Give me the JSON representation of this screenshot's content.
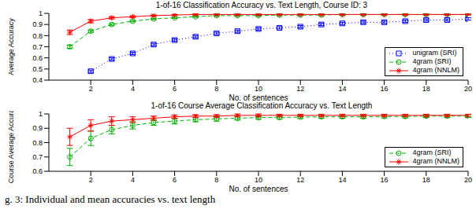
{
  "chart_data": [
    {
      "type": "line",
      "title": "1-of-16 Classification Accuracy vs. Text Length, Course ID: 3",
      "x_label": "No. of sentences",
      "y_label": "Average Accuracy",
      "x": [
        1,
        2,
        3,
        4,
        5,
        6,
        7,
        8,
        9,
        10,
        11,
        12,
        13,
        14,
        15,
        16,
        17,
        18,
        19,
        20
      ],
      "xlim": [
        0,
        20
      ],
      "xticks": [
        2,
        4,
        6,
        8,
        10,
        12,
        14,
        16,
        18,
        20
      ],
      "ylim": [
        0.4,
        1
      ],
      "yticks": [
        0.4,
        0.5,
        0.6,
        0.7,
        0.8,
        0.9,
        1
      ],
      "grid": false,
      "legend": "lower right",
      "series": [
        {
          "name": "unigram (SRI)",
          "color": "#0000ff",
          "marker": "square",
          "line_style": "dotted",
          "values": [
            null,
            0.48,
            0.59,
            0.64,
            0.72,
            0.76,
            0.79,
            0.82,
            0.84,
            0.86,
            0.87,
            0.88,
            0.9,
            0.91,
            0.92,
            0.92,
            0.93,
            0.94,
            0.94,
            0.95
          ],
          "error": [
            null,
            0.01,
            0.01,
            0.01,
            0.01,
            0.01,
            0.01,
            0.01,
            0.01,
            0.01,
            0.01,
            0.01,
            0.01,
            0.01,
            0.01,
            0.01,
            0.01,
            0.01,
            0.01,
            0.01
          ]
        },
        {
          "name": "4gram (SRI)",
          "color": "#00b000",
          "marker": "circle",
          "line_style": "dashed",
          "values": [
            0.7,
            0.84,
            0.9,
            0.93,
            0.95,
            0.96,
            0.97,
            0.98,
            0.98,
            0.98,
            0.985,
            0.985,
            0.985,
            0.99,
            0.99,
            0.99,
            0.99,
            0.99,
            0.99,
            0.99
          ],
          "error": [
            0.015,
            0.01,
            0.008,
            0.006,
            0.005,
            0.005,
            0.005,
            0.005,
            0.005,
            0.005,
            0.005,
            0.005,
            0.005,
            0.005,
            0.005,
            0.005,
            0.005,
            0.005,
            0.005,
            0.005
          ]
        },
        {
          "name": "4gram (NNLM)",
          "color": "#ff0000",
          "marker": "star",
          "line_style": "solid",
          "values": [
            0.83,
            0.93,
            0.96,
            0.97,
            0.98,
            0.985,
            0.99,
            0.99,
            0.99,
            0.99,
            0.99,
            0.99,
            0.99,
            0.99,
            0.99,
            0.99,
            0.99,
            0.99,
            0.99,
            0.99
          ],
          "error": [
            0.02,
            0.015,
            0.01,
            0.008,
            0.005,
            0.005,
            0.005,
            0.005,
            0.005,
            0.005,
            0.005,
            0.005,
            0.005,
            0.005,
            0.005,
            0.005,
            0.005,
            0.005,
            0.005,
            0.005
          ]
        }
      ]
    },
    {
      "type": "line",
      "title": "1-of-16 Course Average Classification Accuracy vs. Text Length",
      "x_label": "No. of sentences",
      "y_label": "Course Average Accuracy",
      "x": [
        1,
        2,
        3,
        4,
        5,
        6,
        7,
        8,
        9,
        10,
        11,
        12,
        13,
        14,
        15,
        16,
        17,
        18,
        19,
        20
      ],
      "xlim": [
        0,
        20
      ],
      "xticks": [
        2,
        4,
        6,
        8,
        10,
        12,
        14,
        16,
        18,
        20
      ],
      "ylim": [
        0.6,
        1
      ],
      "yticks": [
        0.6,
        0.7,
        0.8,
        0.9,
        1
      ],
      "grid": false,
      "legend": "lower right",
      "series": [
        {
          "name": "4gram (SRI)",
          "color": "#00b000",
          "marker": "circle",
          "line_style": "dashed",
          "values": [
            0.7,
            0.83,
            0.89,
            0.92,
            0.94,
            0.95,
            0.96,
            0.965,
            0.97,
            0.975,
            0.975,
            0.978,
            0.98,
            0.98,
            0.98,
            0.982,
            0.982,
            0.985,
            0.985,
            0.985
          ],
          "error": [
            0.06,
            0.05,
            0.03,
            0.025,
            0.02,
            0.02,
            0.015,
            0.015,
            0.012,
            0.012,
            0.01,
            0.01,
            0.01,
            0.01,
            0.01,
            0.01,
            0.01,
            0.01,
            0.01,
            0.01
          ]
        },
        {
          "name": "4gram (NNLM)",
          "color": "#ff0000",
          "marker": "star",
          "line_style": "solid",
          "values": [
            0.84,
            0.92,
            0.95,
            0.96,
            0.97,
            0.98,
            0.985,
            0.985,
            0.99,
            0.99,
            0.99,
            0.99,
            0.99,
            0.99,
            0.99,
            0.99,
            0.99,
            0.99,
            0.99,
            0.99
          ],
          "error": [
            0.06,
            0.04,
            0.03,
            0.02,
            0.015,
            0.012,
            0.01,
            0.01,
            0.01,
            0.01,
            0.008,
            0.008,
            0.008,
            0.008,
            0.008,
            0.008,
            0.008,
            0.008,
            0.008,
            0.008
          ]
        }
      ]
    }
  ],
  "caption": "g. 3: Individual and mean accuracies vs. text length"
}
